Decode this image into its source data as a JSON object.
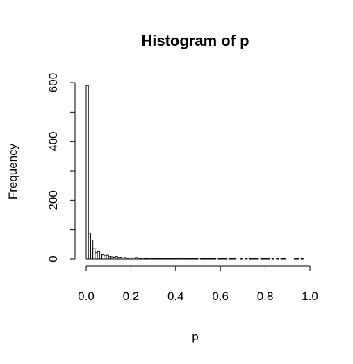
{
  "chart_data": {
    "type": "bar",
    "title": "Histogram of p",
    "xlabel": "p",
    "ylabel": "Frequency",
    "xlim": [
      0,
      1
    ],
    "ylim": [
      0,
      600
    ],
    "x_ticks": [
      0.0,
      0.2,
      0.4,
      0.6,
      0.8,
      1.0
    ],
    "x_tick_labels": [
      "0.0",
      "0.2",
      "0.4",
      "0.6",
      "0.8",
      "1.0"
    ],
    "y_ticks": [
      0,
      100,
      200,
      300,
      400,
      500,
      600
    ],
    "y_tick_labels": [
      "0",
      "",
      "200",
      "",
      "400",
      "",
      "600"
    ],
    "bin_width": 0.01,
    "bin_starts": [
      0.0,
      0.01,
      0.02,
      0.03,
      0.04,
      0.05,
      0.06,
      0.07,
      0.08,
      0.09,
      0.1,
      0.11,
      0.12,
      0.13,
      0.14,
      0.15,
      0.16,
      0.17,
      0.18,
      0.19,
      0.2,
      0.21,
      0.22,
      0.23,
      0.24,
      0.25,
      0.26,
      0.27,
      0.28,
      0.29,
      0.3,
      0.31,
      0.32,
      0.33,
      0.34,
      0.35,
      0.36,
      0.37,
      0.38,
      0.39,
      0.4,
      0.41,
      0.42,
      0.43,
      0.44,
      0.45,
      0.46,
      0.47,
      0.48,
      0.49,
      0.5,
      0.51,
      0.52,
      0.53,
      0.54,
      0.55,
      0.56,
      0.57,
      0.58,
      0.59,
      0.6,
      0.61,
      0.62,
      0.63,
      0.64,
      0.65,
      0.66,
      0.67,
      0.68,
      0.69,
      0.7,
      0.71,
      0.72,
      0.73,
      0.74,
      0.75,
      0.76,
      0.77,
      0.78,
      0.79,
      0.8,
      0.81,
      0.82,
      0.83,
      0.84,
      0.85,
      0.86,
      0.87,
      0.88,
      0.89,
      0.9,
      0.91,
      0.92,
      0.93,
      0.94,
      0.95,
      0.96,
      0.97
    ],
    "values": [
      590,
      88,
      65,
      35,
      22,
      25,
      18,
      15,
      12,
      14,
      9,
      7,
      6,
      8,
      5,
      6,
      4,
      5,
      3,
      4,
      3,
      4,
      5,
      3,
      2,
      3,
      2,
      2,
      3,
      2,
      1,
      2,
      2,
      1,
      1,
      2,
      1,
      1,
      1,
      2,
      1,
      1,
      1,
      1,
      1,
      2,
      1,
      1,
      1,
      1,
      0,
      1,
      2,
      2,
      1,
      2,
      1,
      2,
      0,
      1,
      1,
      1,
      1,
      0,
      1,
      1,
      1,
      0,
      0,
      1,
      0,
      1,
      0,
      1,
      1,
      1,
      1,
      0,
      2,
      2,
      1,
      1,
      0,
      1,
      0,
      1,
      0,
      1,
      1,
      0,
      0,
      0,
      0,
      1,
      1,
      0,
      1,
      0
    ],
    "grid": false,
    "legend": false
  }
}
